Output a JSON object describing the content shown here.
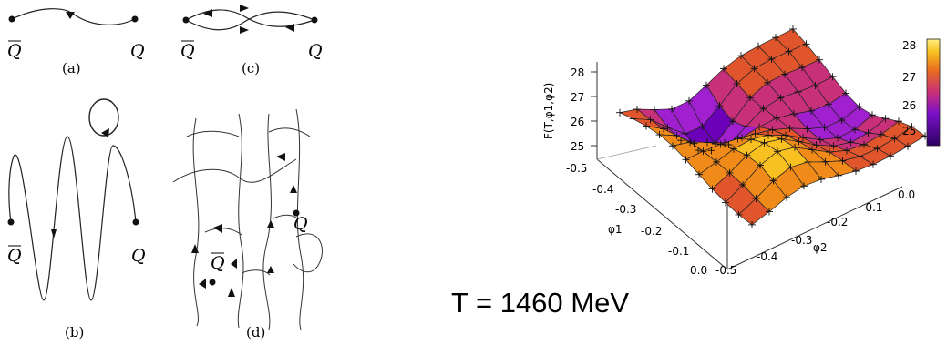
{
  "diagrams": {
    "quark": "Q",
    "antiquark": "Q",
    "panels": [
      "(a)",
      "(c)",
      "(b)",
      "(d)"
    ]
  },
  "temperature_label": "T = 1460 MeV",
  "chart_data": {
    "type": "surface3d",
    "zlabel": "F(T,φ1,φ2)",
    "xlabel": "φ1",
    "ylabel": "φ2",
    "x_ticks": [
      "-0.5",
      "-0.4",
      "-0.3",
      "-0.2",
      "-0.1",
      "0.0"
    ],
    "y_ticks": [
      "-0.5",
      "-0.4",
      "-0.3",
      "-0.2",
      "-0.1",
      "0.0"
    ],
    "z_ticks": [
      "25",
      "26",
      "27",
      "28"
    ],
    "colorbar_ticks": [
      "28",
      "27",
      "26",
      "25"
    ],
    "zlim": [
      24.5,
      28.3
    ],
    "colors": [
      "#2a0060",
      "#6b00b8",
      "#a020d0",
      "#c8307a",
      "#e0552c",
      "#f08a18",
      "#f8c020",
      "#fff080"
    ]
  }
}
